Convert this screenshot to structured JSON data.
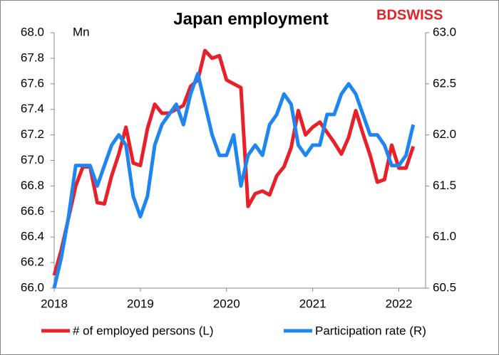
{
  "chart_data": {
    "type": "line",
    "title": "Japan employment",
    "y_label": "Mn",
    "logo": "BDSWISS",
    "x": [
      2018,
      2018.083,
      2018.167,
      2018.25,
      2018.333,
      2018.417,
      2018.5,
      2018.583,
      2018.667,
      2018.75,
      2018.833,
      2018.917,
      2019,
      2019.083,
      2019.167,
      2019.25,
      2019.333,
      2019.417,
      2019.5,
      2019.583,
      2019.667,
      2019.75,
      2019.833,
      2019.917,
      2020,
      2020.083,
      2020.167,
      2020.25,
      2020.333,
      2020.417,
      2020.5,
      2020.583,
      2020.667,
      2020.75,
      2020.833,
      2020.917,
      2021,
      2021.083,
      2021.167,
      2021.25,
      2021.333,
      2021.417,
      2021.5,
      2021.583,
      2021.667,
      2021.75,
      2021.833,
      2021.917,
      2022,
      2022.083,
      2022.167
    ],
    "series": [
      {
        "name": "# of employed persons (L)",
        "color": "#e8202a",
        "values": [
          66.1,
          66.3,
          66.55,
          66.8,
          66.95,
          66.95,
          66.67,
          66.66,
          66.88,
          67.05,
          67.26,
          66.98,
          66.96,
          67.25,
          67.44,
          67.37,
          67.37,
          67.4,
          67.43,
          67.58,
          67.63,
          67.86,
          67.8,
          67.82,
          67.63,
          67.6,
          67.57,
          66.64,
          66.74,
          66.76,
          66.73,
          66.88,
          66.95,
          67.1,
          67.39,
          67.2,
          67.26,
          67.3,
          67.22,
          67.14,
          67.05,
          67.18,
          67.39,
          67.21,
          67.04,
          66.83,
          66.85,
          67.12,
          66.94,
          66.94,
          67.11
        ]
      },
      {
        "name": "Participation rate (R)",
        "color": "#1f86f0",
        "axis": "y2",
        "values": [
          60.5,
          60.8,
          61.2,
          61.7,
          61.7,
          61.7,
          61.5,
          61.7,
          61.9,
          62.0,
          61.9,
          61.4,
          61.2,
          61.4,
          61.9,
          62.1,
          62.2,
          62.3,
          62.1,
          62.4,
          62.6,
          62.3,
          62.0,
          61.8,
          61.8,
          62.0,
          61.5,
          61.8,
          61.9,
          61.8,
          62.1,
          62.2,
          62.4,
          62.3,
          61.9,
          61.8,
          61.9,
          61.9,
          62.2,
          62.2,
          62.4,
          62.5,
          62.4,
          62.2,
          62.0,
          62.0,
          61.9,
          61.7,
          61.7,
          61.8,
          62.1
        ]
      }
    ],
    "xlim": [
      2018,
      2022.31
    ],
    "xticks": [
      2018,
      2019,
      2020,
      2021,
      2022
    ],
    "ylim": [
      66,
      68
    ],
    "yticks": [
      {
        "value": 66,
        "label": "66.0"
      },
      {
        "value": 66.2,
        "label": "66.2"
      },
      {
        "value": 66.4,
        "label": "66.4"
      },
      {
        "value": 66.6,
        "label": "66.6"
      },
      {
        "value": 66.8,
        "label": "66.8"
      },
      {
        "value": 67,
        "label": "67.0"
      },
      {
        "value": 67.2,
        "label": "67.2"
      },
      {
        "value": 67.4,
        "label": "67.4"
      },
      {
        "value": 67.6,
        "label": "67.6"
      },
      {
        "value": 67.8,
        "label": "67.8"
      },
      {
        "value": 68,
        "label": "68.0"
      }
    ],
    "y2lim": [
      60.5,
      63
    ],
    "y2ticks": [
      60.5,
      {
        "value": 61,
        "label": "61.0"
      },
      61.5,
      {
        "value": 62,
        "label": "62.0"
      },
      62.5,
      {
        "value": 63,
        "label": "63.0"
      }
    ]
  }
}
